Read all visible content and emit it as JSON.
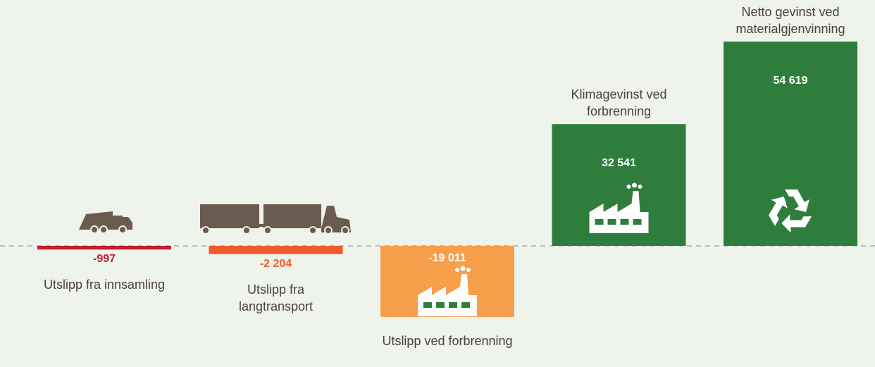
{
  "chart_data": {
    "type": "bar",
    "categories": [
      "Utslipp fra innsamling",
      "Utslipp fra langtransport",
      "Utslipp ved forbrenning",
      "Klimagevinst ved forbrenning",
      "Netto gevinst ved materialgjenvinning"
    ],
    "values": [
      -997,
      -2204,
      -19011,
      32541,
      54619
    ],
    "value_labels": [
      "-997",
      "-2 204",
      "-19 011",
      "32 541",
      "54 619"
    ],
    "colors": [
      "#c01f2f",
      "#f15a2b",
      "#f79e4b",
      "#2e7d3c",
      "#2e7d3c"
    ]
  }
}
